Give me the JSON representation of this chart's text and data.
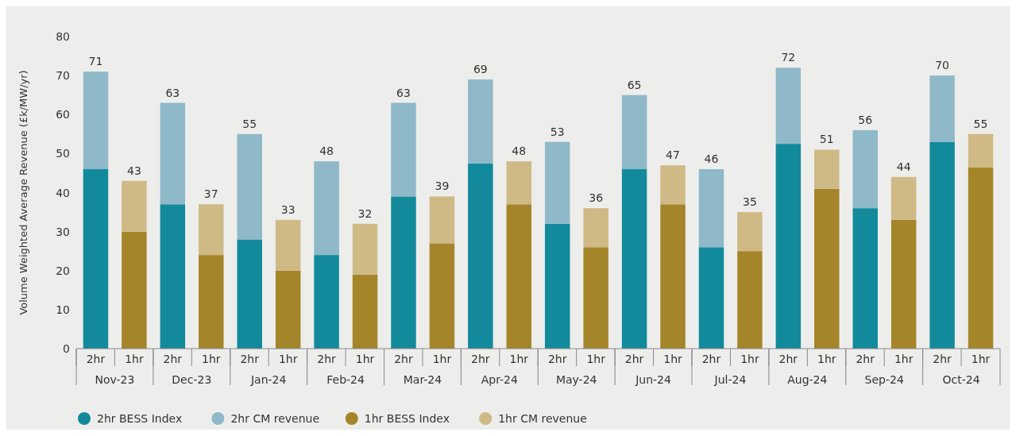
{
  "chart_data": {
    "type": "bar",
    "stacked": true,
    "ylabel": "Volume Weighted Average Revenue (£k/MW/yr)",
    "categories": [
      "2hr",
      "1hr",
      "2hr",
      "1hr",
      "2hr",
      "1hr",
      "2hr",
      "1hr",
      "2hr",
      "1hr",
      "2hr",
      "1hr",
      "2hr",
      "1hr",
      "2hr",
      "1hr",
      "2hr",
      "1hr",
      "2hr",
      "1hr",
      "2hr",
      "1hr",
      "2hr",
      "1hr"
    ],
    "annotations": [
      "Nov-23",
      "Dec-23",
      "Jan-24",
      "Feb-24",
      "Mar-24",
      "Apr-24",
      "May-24",
      "Jun-24",
      "Jul-24",
      "Aug-24",
      "Sep-24",
      "Oct-24"
    ],
    "series": [
      {
        "name": "2hr BESS Index",
        "color": "#128a9c",
        "values": [
          46,
          null,
          37,
          null,
          28,
          null,
          24,
          null,
          39,
          null,
          47.5,
          null,
          32,
          null,
          46,
          null,
          26,
          null,
          52.5,
          null,
          36,
          null,
          53,
          null
        ]
      },
      {
        "name": "2hr CM revenue",
        "color": "#8fb8c8",
        "values": [
          25,
          null,
          26,
          null,
          27,
          null,
          24,
          null,
          24,
          null,
          21.5,
          null,
          21,
          null,
          19,
          null,
          20,
          null,
          19.5,
          null,
          20,
          null,
          17,
          null
        ]
      },
      {
        "name": "1hr BESS Index",
        "color": "#a5852a",
        "values": [
          null,
          30,
          null,
          24,
          null,
          20,
          null,
          19,
          null,
          27,
          null,
          37,
          null,
          26,
          null,
          37,
          null,
          25,
          null,
          41,
          null,
          33,
          null,
          46.5
        ]
      },
      {
        "name": "1hr CM revenue",
        "color": "#cfb985",
        "values": [
          null,
          13,
          null,
          13,
          null,
          13,
          null,
          13,
          null,
          12,
          null,
          11,
          null,
          10,
          null,
          10,
          null,
          10,
          null,
          10,
          null,
          11,
          null,
          8.5
        ]
      }
    ],
    "totals": [
      "71",
      "43",
      "63",
      "37",
      "55",
      "33",
      "48",
      "32",
      "63",
      "39",
      "69",
      "48",
      "53",
      "36",
      "65",
      "47",
      "46",
      "35",
      "72",
      "51",
      "56",
      "44",
      "70",
      "55"
    ],
    "ylim": [
      0,
      80
    ],
    "yticks": [
      0,
      10,
      20,
      30,
      40,
      50,
      60,
      70,
      80
    ],
    "grid": false,
    "legend": "bottom"
  }
}
